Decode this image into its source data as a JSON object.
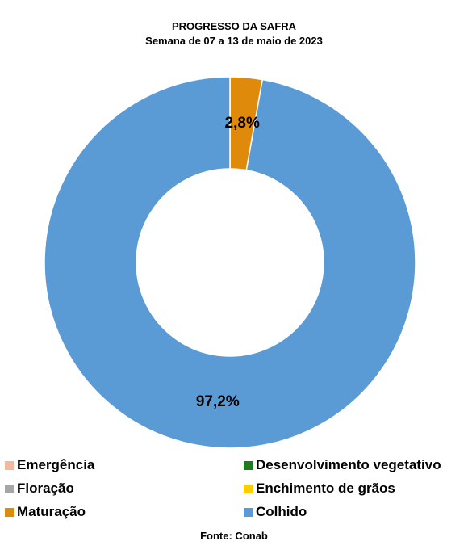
{
  "chart_data": {
    "type": "pie",
    "donut": true,
    "title": "PROGRESSO DA SAFRA",
    "subtitle": "Semana de 07 a 13 de maio de 2023",
    "source": "Fonte: Conab",
    "legend_position": "bottom",
    "categories": [
      "Emergência",
      "Desenvolvimento vegetativo",
      "Floração",
      "Enchimento de grãos",
      "Maturação",
      "Colhido"
    ],
    "values": [
      0,
      0,
      0,
      0,
      2.8,
      97.2
    ],
    "colors": [
      "#F4B8A0",
      "#1E7B1E",
      "#A6A6A6",
      "#FFCC00",
      "#E08A0B",
      "#5B9BD5"
    ],
    "data_labels": [
      "",
      "",
      "",
      "",
      "2,8%",
      "97,2%"
    ],
    "unit": "%"
  }
}
